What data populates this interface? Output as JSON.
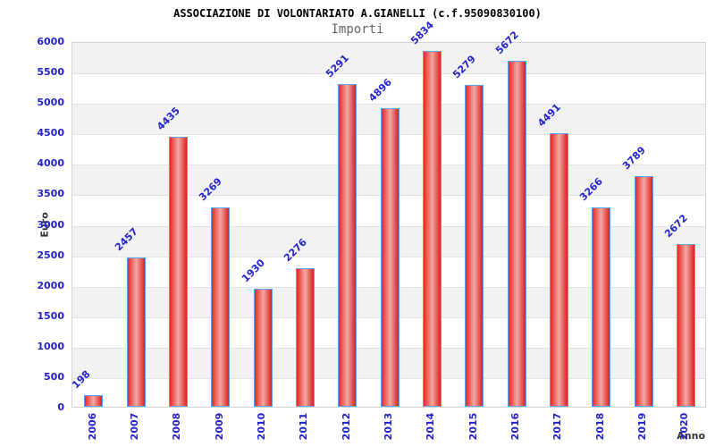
{
  "chart_data": {
    "type": "bar",
    "title": "ASSOCIAZIONE DI VOLONTARIATO A.GIANELLI (c.f.95090830100)",
    "subtitle": "Importi",
    "xlabel": "Anno",
    "ylabel": "Euro",
    "categories": [
      "2006",
      "2007",
      "2008",
      "2009",
      "2010",
      "2011",
      "2012",
      "2013",
      "2014",
      "2015",
      "2016",
      "2017",
      "2018",
      "2019",
      "2020"
    ],
    "values": [
      198,
      2457,
      4435,
      3269,
      1930,
      2276,
      5291,
      4896,
      5834,
      5279,
      5672,
      4491,
      3266,
      3789,
      2672
    ],
    "ylim": [
      0,
      6000
    ],
    "y_ticks": [
      0,
      500,
      1000,
      1500,
      2000,
      2500,
      3000,
      3500,
      4000,
      4500,
      5000,
      5500,
      6000
    ],
    "grid": true,
    "legend": false,
    "bar_value_labels_rotated_45": true,
    "x_labels_rotated_90": true,
    "colors": {
      "label_blue": "#2323cd",
      "bar_border": "#58a6f2",
      "bar_edge_red": "#e82525",
      "bar_center_highlight": "#f2a9a4",
      "bar_edge_red_dark": "#de1f1f",
      "band_gray": "#f2f2f2",
      "grid_line": "#e3e3e3",
      "plot_border": "#d4d4d4",
      "title_color": "#000000",
      "subtitle_color": "#666666",
      "axis_title_color": "#333333",
      "background": "#ffffff"
    }
  }
}
